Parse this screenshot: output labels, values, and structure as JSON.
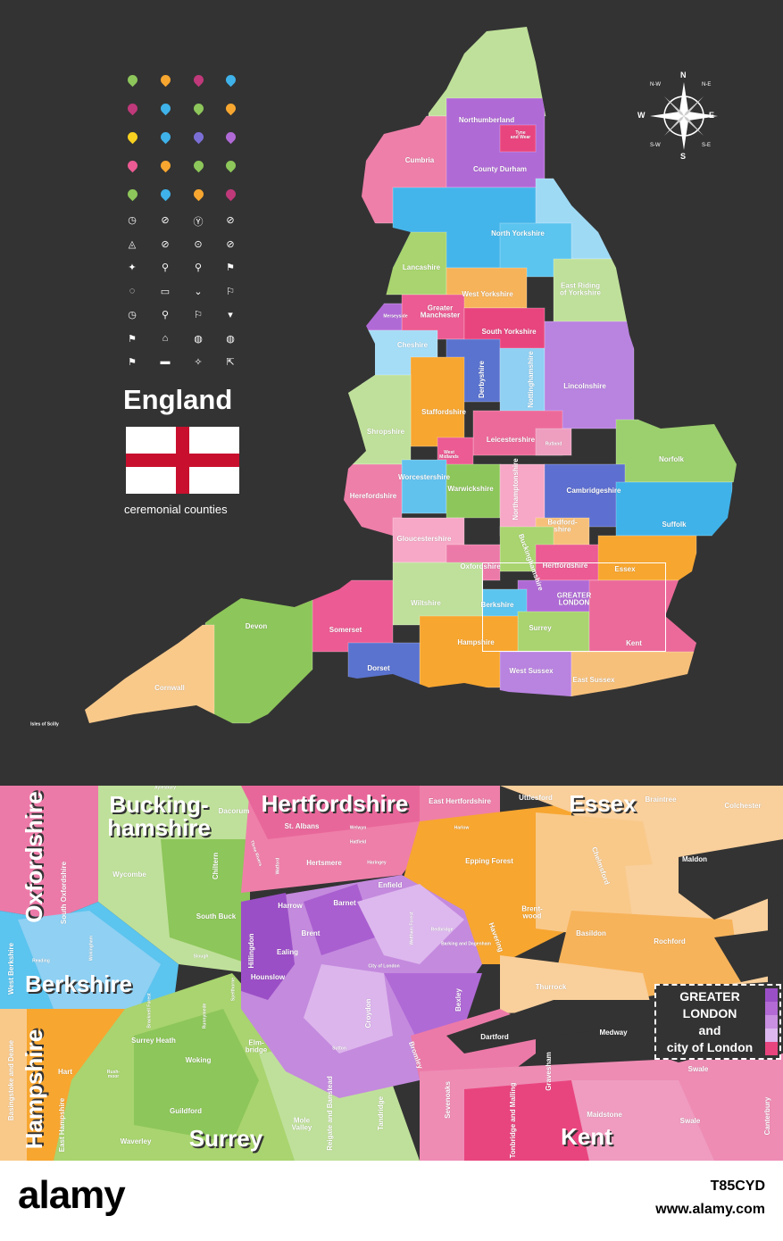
{
  "legend_panel": {
    "title": "England",
    "subtitle": "ceremonial counties"
  },
  "compass": {
    "n": "N",
    "e": "E",
    "s": "S",
    "w": "W",
    "ne": "N-E",
    "nw": "N-W",
    "se": "S-E",
    "sw": "S-W"
  },
  "main_map": {
    "counties": [
      "Northumberland",
      "Tyne and Wear",
      "Cumbria",
      "County Durham",
      "North Yorkshire",
      "East Riding of Yorkshire",
      "Lancashire",
      "West Yorkshire",
      "Greater Manchester",
      "Merseyside",
      "South Yorkshire",
      "Cheshire",
      "Lincolnshire",
      "Derbyshire",
      "Nottinghamshire",
      "Staffordshire",
      "Shropshire",
      "Leicestershire",
      "Rutland",
      "West Midlands",
      "Norfolk",
      "Worcestershire",
      "Warwickshire",
      "Northamptonshire",
      "Cambridgeshire",
      "Herefordshire",
      "Bedfordshire",
      "Suffolk",
      "Gloucestershire",
      "Buckinghamshire",
      "Oxfordshire",
      "Hertfordshire",
      "Essex",
      "GREATER LONDON",
      "Berkshire",
      "Wiltshire",
      "Somerset",
      "Surrey",
      "Kent",
      "Hampshire",
      "Devon",
      "Dorset",
      "West Sussex",
      "East Sussex",
      "Cornwall",
      "Isles of Scilly"
    ]
  },
  "inset": {
    "counties": [
      "Oxfordshire",
      "Bucking-hamshire",
      "Hertfordshire",
      "Essex",
      "Berkshire",
      "Hampshire",
      "Surrey",
      "Kent"
    ],
    "districts": [
      "Aylesbury",
      "Dacorum",
      "East Hertfordshire",
      "Uttlesford",
      "Braintree",
      "Colchester",
      "Wycombe",
      "Chiltern",
      "St. Albans",
      "Welwyn",
      "Hatfield",
      "Hertsmere",
      "Three Rivers",
      "Watford",
      "Harlow",
      "Epping Forest",
      "Chelmsford",
      "Maldon",
      "South Oxfordshire",
      "South Buck",
      "Harrow",
      "Barnet",
      "Enfield",
      "Brent",
      "Ealing",
      "Hillingdon",
      "Hounslow",
      "Redbridge",
      "Havering",
      "Brent-wood",
      "Basildon",
      "Rochford",
      "Thurrock",
      "West Berkshire",
      "Reading",
      "Wokingham",
      "Slough",
      "Dartford",
      "Medway",
      "Bexley",
      "Croydon",
      "Bromley",
      "Surrey Heath",
      "Woking",
      "Elm-bridge",
      "Hart",
      "Rush-moor",
      "Guildford",
      "Mole Valley",
      "Waverley",
      "Tandridge",
      "Reigate and Banstead",
      "Sevenoaks",
      "Tonbridge and Malling",
      "Maidstone",
      "Swale",
      "Canterbury",
      "Gravesham",
      "Basingstoke and Deane",
      "East Hampshire",
      "Swale",
      "Runnymede",
      "Spelthorne",
      "Bracknell Forest",
      "City of London",
      "Haringey",
      "Waltham Forest",
      "Barking and Dagenham",
      "Sutton"
    ],
    "legend": {
      "line1": "GREATER",
      "line2": "LONDON",
      "line3": "and",
      "line4": "city of London",
      "colors": [
        "#9b4fc6",
        "#b36ad4",
        "#c98fe0",
        "#ddb8ee",
        "#e8457e"
      ]
    }
  },
  "colors": {
    "background": "#333333",
    "flag_red": "#c8102e"
  },
  "watermark": {
    "logo": "alamy",
    "image_id": "T85CYD",
    "url": "www.alamy.com"
  }
}
